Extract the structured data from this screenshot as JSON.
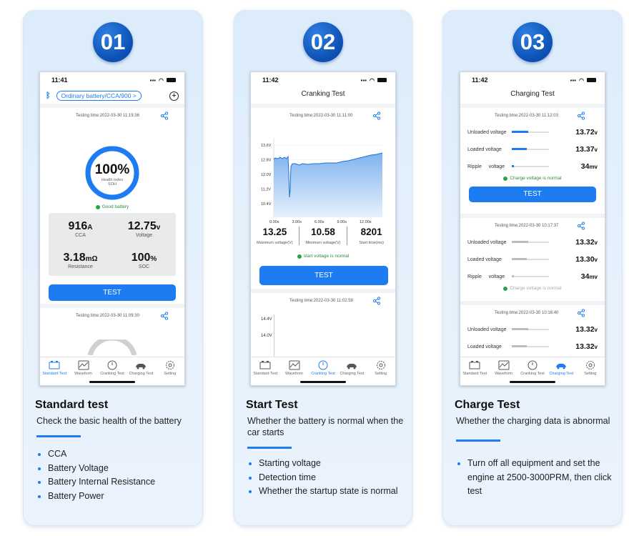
{
  "colors": {
    "accent": "#1d7cf2",
    "good": "#2ca24a",
    "badge": "#0b4fb3"
  },
  "cards": [
    {
      "number": "01",
      "title": "Standard test",
      "description": "Check the basic health of the battery",
      "bullets": [
        "CCA",
        "Battery Voltage",
        "Battery Internal Resistance",
        "Battery Power"
      ],
      "phone": {
        "time": "11:41",
        "selector": "Ordinary battery/CCA/900",
        "test1_time": "Testing time:2022-03-30 11:19:36",
        "gauge_value": "100%",
        "gauge_sub1": "Health index",
        "gauge_sub2": "SOH",
        "gauge_fraction": 1.0,
        "status": "Good battery",
        "metrics": [
          {
            "value": "916",
            "unit": "A",
            "label": "CCA"
          },
          {
            "value": "12.75",
            "unit": "v",
            "label": "Voltage"
          },
          {
            "value": "3.18",
            "unit": "mΩ",
            "label": "Resistance"
          },
          {
            "value": "100",
            "unit": "%",
            "label": "SOC"
          }
        ],
        "button": "TEST",
        "test2_time": "Testing time:2022-03-30 11:09:30"
      }
    },
    {
      "number": "02",
      "title": "Start Test",
      "description": "Whether the battery is normal when the car starts",
      "bullets": [
        "Starting voltage",
        "Detection time",
        "Whether the startup state is normal"
      ],
      "phone": {
        "time": "11:42",
        "page_title": "Cranking Test",
        "test1_time": "Testing time:2022-03-30 11:11:00",
        "chart_yticks": [
          "13.6V",
          "12.8V",
          "12.0V",
          "11.2V",
          "10.4V"
        ],
        "chart_xticks": [
          "0.00s",
          "3.00s",
          "6.00s",
          "9.00s",
          "12.00s"
        ],
        "stats": [
          {
            "value": "13.25",
            "label": "Maximum voltage(V)"
          },
          {
            "value": "10.58",
            "label": "Minimum voltage(V)"
          },
          {
            "value": "8201",
            "label": "Start time(ms)"
          }
        ],
        "status": "start voltage is normal",
        "button": "TEST",
        "test2_time": "Testing time:2022-03-30 11:02:58",
        "chart2_yticks": [
          "14.4V",
          "14.0V"
        ]
      }
    },
    {
      "number": "03",
      "title": "Charge Test",
      "description": "Whether the charging data is abnormal",
      "bullets": [
        "Turn off all equipment and set the engine at 2500-3000PRM, then click test"
      ],
      "phone": {
        "time": "11:42",
        "page_title": "Charging Test",
        "sections": [
          {
            "time": "Testing time:2022-03-30 11:12:03",
            "unloaded": "13.72",
            "loaded": "13.37",
            "ripple": "34",
            "status": "Charge voltage is normal",
            "unloaded_fill": 0.45,
            "loaded_fill": 0.4,
            "ripple_fill": 0.05
          },
          {
            "time": "Testing time:2022-03-30 10:17:37",
            "unloaded": "13.32",
            "loaded": "13.30",
            "ripple": "34",
            "status": "Charge voltage is normal",
            "unloaded_fill": 0.45,
            "loaded_fill": 0.4,
            "ripple_fill": 0.05
          },
          {
            "time": "Testing time:2022-03-30 10:16:40",
            "unloaded": "13.32",
            "loaded": "13.32",
            "unloaded_fill": 0.45,
            "loaded_fill": 0.4
          }
        ],
        "label_unloaded": "Unloaded voltage",
        "label_loaded": "Loaded voltage",
        "label_ripple": "Ripple",
        "label_ripple2": "voltage",
        "unit_v": "v",
        "unit_mv": "mv",
        "button": "TEST"
      }
    }
  ],
  "tabs": [
    "Standard Test",
    "Waveform",
    "Cranking Test",
    "Charging Test",
    "Setting"
  ]
}
